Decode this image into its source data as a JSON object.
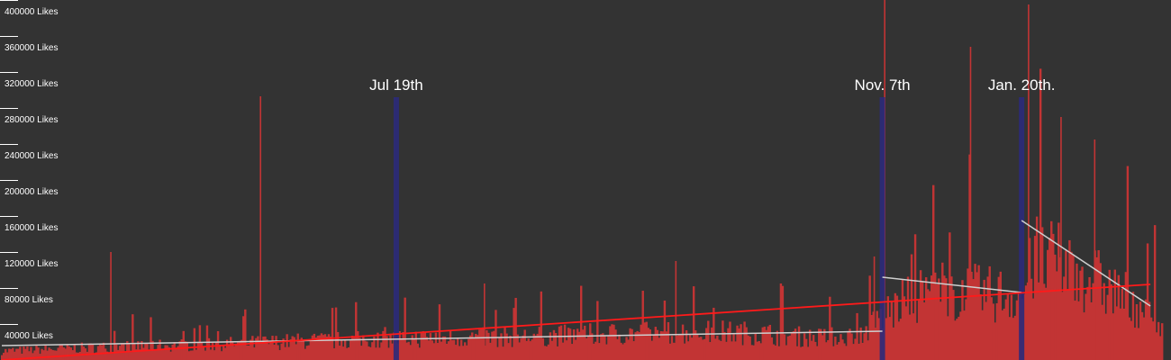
{
  "chart_data": {
    "type": "bar",
    "title": "",
    "xlabel": "",
    "ylabel": "",
    "ylim": [
      0,
      400000
    ],
    "y_ticks": [
      {
        "value": 40000,
        "label": "40000 Likes"
      },
      {
        "value": 80000,
        "label": "80000 Likes"
      },
      {
        "value": 120000,
        "label": "120000 Likes"
      },
      {
        "value": 160000,
        "label": "160000 Likes"
      },
      {
        "value": 200000,
        "label": "200000 Likes"
      },
      {
        "value": 240000,
        "label": "240000 Likes"
      },
      {
        "value": 280000,
        "label": "280000 Likes"
      },
      {
        "value": 320000,
        "label": "320000 Likes"
      },
      {
        "value": 360000,
        "label": "360000 Likes"
      },
      {
        "value": 400000,
        "label": "400000 Likes"
      }
    ],
    "grid": false,
    "legend": "none",
    "x_range": [
      0,
      1
    ],
    "series_profile": [
      [
        0.0,
        12000
      ],
      [
        0.05,
        15000
      ],
      [
        0.1,
        18000
      ],
      [
        0.15,
        20000
      ],
      [
        0.2,
        22000
      ],
      [
        0.25,
        25000
      ],
      [
        0.3,
        27000
      ],
      [
        0.34,
        29000
      ],
      [
        0.4,
        30000
      ],
      [
        0.45,
        31000
      ],
      [
        0.5,
        34000
      ],
      [
        0.55,
        36000
      ],
      [
        0.6,
        38000
      ],
      [
        0.65,
        36000
      ],
      [
        0.7,
        30000
      ],
      [
        0.74,
        33000
      ],
      [
        0.76,
        62000
      ],
      [
        0.8,
        95000
      ],
      [
        0.85,
        88000
      ],
      [
        0.88,
        88000
      ],
      [
        0.89,
        135000
      ],
      [
        0.92,
        125000
      ],
      [
        0.95,
        100000
      ],
      [
        0.99,
        65000
      ],
      [
        1.0,
        40000
      ]
    ],
    "spikes": [
      {
        "x": 0.094,
        "value": 120000
      },
      {
        "x": 0.223,
        "value": 293000
      },
      {
        "x": 0.416,
        "value": 85000
      },
      {
        "x": 0.581,
        "value": 110000
      },
      {
        "x": 0.752,
        "value": 115000
      },
      {
        "x": 0.761,
        "value": 400000
      },
      {
        "x": 0.835,
        "value": 348000
      },
      {
        "x": 0.885,
        "value": 395000
      },
      {
        "x": 0.913,
        "value": 270000
      },
      {
        "x": 0.942,
        "value": 245000
      }
    ],
    "events": [
      {
        "label": "Jul 19th",
        "x": 0.34
      },
      {
        "label": "Nov. 7th",
        "x": 0.759
      },
      {
        "label": "Jan. 20th.",
        "x": 0.879
      }
    ],
    "overall_trend": {
      "from": [
        0.0,
        0
      ],
      "to": [
        0.99,
        84000
      ],
      "color": "#ff1a1a"
    },
    "segment_trends": [
      {
        "from": [
          0.0,
          16000
        ],
        "to": [
          0.759,
          32000
        ]
      },
      {
        "from": [
          0.759,
          92000
        ],
        "to": [
          0.879,
          75000
        ]
      },
      {
        "from": [
          0.879,
          155000
        ],
        "to": [
          0.99,
          60000
        ]
      }
    ],
    "colors": {
      "background": "#333333",
      "bars": "#c23434",
      "event_line": "#2b2a7a",
      "segment_trend": "#cfcfcf",
      "text": "#ffffff"
    }
  }
}
